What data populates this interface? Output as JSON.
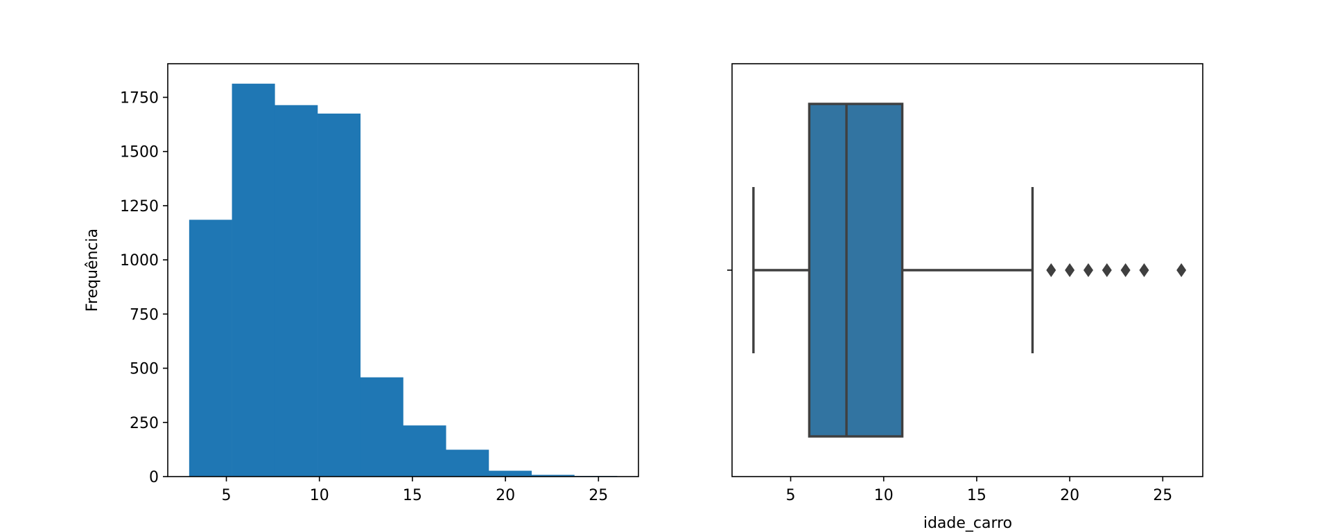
{
  "chart_data": [
    {
      "type": "bar",
      "subtype": "histogram",
      "ylabel": "Frequência",
      "xlabel": "",
      "color": "#1f77b4",
      "bin_edges": [
        3.0,
        5.3,
        7.6,
        9.9,
        12.2,
        14.5,
        16.8,
        19.1,
        21.4,
        23.7,
        26.0
      ],
      "values": [
        1185,
        1813,
        1714,
        1675,
        458,
        236,
        124,
        27,
        8,
        3
      ],
      "xlim": [
        1.85,
        27.15
      ],
      "ylim": [
        0,
        1905
      ],
      "xticks": [
        5,
        10,
        15,
        20,
        25
      ],
      "xtick_labels": [
        "5",
        "10",
        "15",
        "20",
        "25"
      ],
      "yticks": [
        0,
        250,
        500,
        750,
        1000,
        1250,
        1500,
        1750
      ],
      "ytick_labels": [
        "0",
        "250",
        "500",
        "750",
        "1000",
        "1250",
        "1500",
        "1750"
      ],
      "grid": false
    },
    {
      "type": "boxplot",
      "orientation": "horizontal",
      "xlabel": "idade_carro",
      "ylabel": "",
      "color": "#3274a1",
      "line_color": "#3f3f3f",
      "whisker_low": 3,
      "q1": 6,
      "median": 8,
      "q3": 11,
      "whisker_high": 18,
      "outliers": [
        19,
        20,
        21,
        22,
        23,
        24,
        26
      ],
      "xlim": [
        1.85,
        27.15
      ],
      "xticks": [
        5,
        10,
        15,
        20,
        25
      ],
      "xtick_labels": [
        "5",
        "10",
        "15",
        "20",
        "25"
      ],
      "grid": false
    }
  ]
}
